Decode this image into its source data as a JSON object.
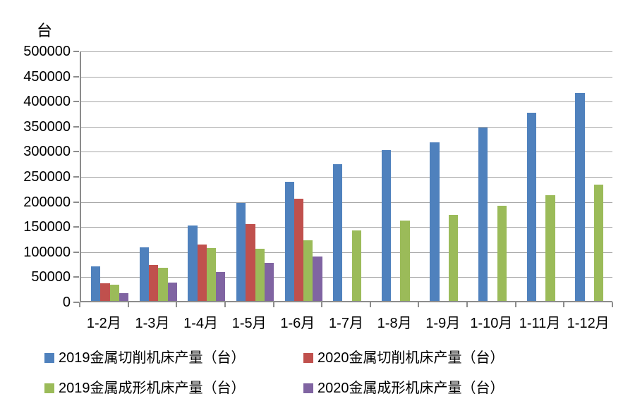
{
  "chart_data": {
    "type": "bar",
    "title": "",
    "xlabel": "",
    "ylabel": "台",
    "ylim": [
      0,
      500000
    ],
    "ytick_interval": 50000,
    "yticks": [
      "500000",
      "450000",
      "400000",
      "350000",
      "300000",
      "250000",
      "200000",
      "150000",
      "100000",
      "50000",
      "0"
    ],
    "categories": [
      "1-2月",
      "1-3月",
      "1-4月",
      "1-5月",
      "1-6月",
      "1-7月",
      "1-8月",
      "1-9月",
      "1-10月",
      "1-11月",
      "1-12月"
    ],
    "grid": true,
    "legend_position": "bottom",
    "series": [
      {
        "name": "2019金属切削机床产量（台）",
        "color": "#4F81BD",
        "values": [
          69000,
          107000,
          151000,
          195000,
          238000,
          272000,
          300000,
          316000,
          346000,
          375000,
          415000
        ]
      },
      {
        "name": "2020金属切削机床产量（台）",
        "color": "#C0504D",
        "values": [
          35000,
          72000,
          113000,
          153000,
          204000,
          null,
          null,
          null,
          null,
          null,
          null
        ]
      },
      {
        "name": "2019金属成形机床产量（台）",
        "color": "#9BBB59",
        "values": [
          32000,
          66000,
          106000,
          104000,
          121000,
          141000,
          160000,
          171000,
          189000,
          210000,
          232000
        ]
      },
      {
        "name": "2020金属成形机床产量（台）",
        "color": "#8064A2",
        "values": [
          16000,
          37000,
          57000,
          76000,
          89000,
          null,
          null,
          null,
          null,
          null,
          null
        ]
      }
    ],
    "colors": {
      "gridline": "#A6A6A6",
      "axis": "#8C8C8C",
      "background": "#FFFFFF",
      "text": "#000000"
    }
  }
}
